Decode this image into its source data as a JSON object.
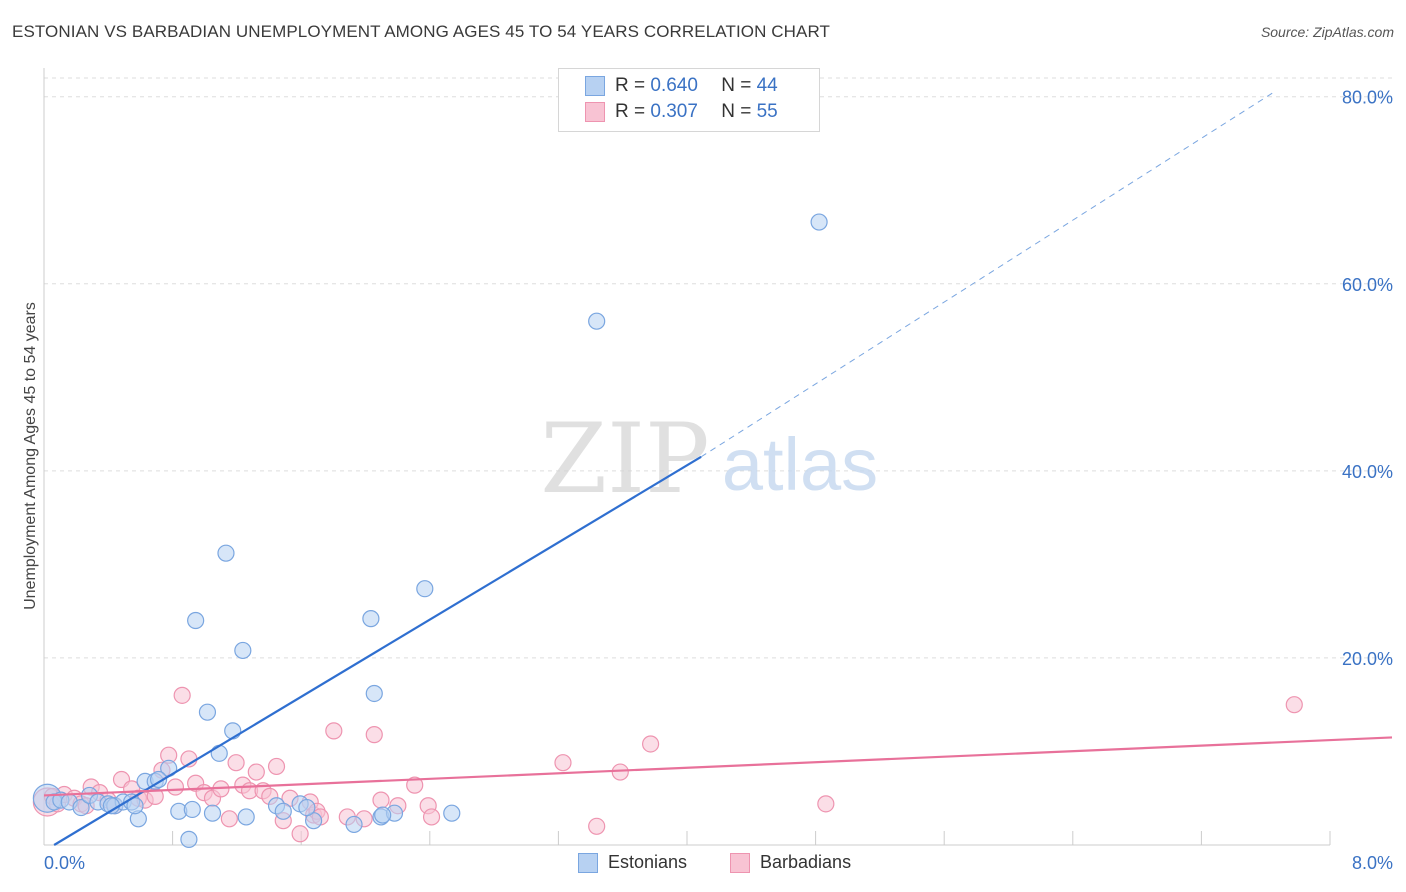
{
  "title": "ESTONIAN VS BARBADIAN UNEMPLOYMENT AMONG AGES 45 TO 54 YEARS CORRELATION CHART",
  "source": "Source: ZipAtlas.com",
  "watermark": {
    "zip": "ZIP",
    "atlas": "atlas"
  },
  "colors": {
    "blue_fill": "#b7d1f2",
    "blue_stroke": "#7aa6e0",
    "blue_line": "#2f6fd0",
    "pink_fill": "#f8c3d3",
    "pink_stroke": "#ee94b0",
    "pink_line": "#e8719a",
    "axis_text": "#3a72c4",
    "grid": "#dedede"
  },
  "legend": {
    "rows": [
      {
        "r_label": "R =",
        "r_value": "0.640",
        "n_label": "N =",
        "n_value": "44"
      },
      {
        "r_label": "R =",
        "r_value": "0.307",
        "n_label": "N =",
        "n_value": "55"
      }
    ]
  },
  "bottom_legend": {
    "estonians": "Estonians",
    "barbadians": "Barbadians"
  },
  "chart_data": {
    "type": "scatter",
    "title": "ESTONIAN VS BARBADIAN UNEMPLOYMENT AMONG AGES 45 TO 54 YEARS CORRELATION CHART",
    "xlabel": "",
    "ylabel": "Unemployment Among Ages 45 to 54 years",
    "xlim": [
      0,
      8
    ],
    "ylim": [
      0,
      82
    ],
    "x_tick_labels": [
      {
        "value": 0,
        "label": "0.0%"
      },
      {
        "value": 8,
        "label": "8.0%"
      }
    ],
    "y_ticks": [
      {
        "value": 20,
        "label": "20.0%"
      },
      {
        "value": 40,
        "label": "40.0%"
      },
      {
        "value": 60,
        "label": "60.0%"
      },
      {
        "value": 80,
        "label": "80.0%"
      }
    ],
    "series": [
      {
        "name": "Estonians",
        "color": "blue",
        "points": [
          [
            0.02,
            5.0
          ],
          [
            0.06,
            4.6
          ],
          [
            0.1,
            4.8
          ],
          [
            0.15,
            4.6
          ],
          [
            0.22,
            4.0
          ],
          [
            0.27,
            5.3
          ],
          [
            0.32,
            4.6
          ],
          [
            0.38,
            4.4
          ],
          [
            0.42,
            4.2
          ],
          [
            0.47,
            4.6
          ],
          [
            0.52,
            4.6
          ],
          [
            0.6,
            6.8
          ],
          [
            0.66,
            6.8
          ],
          [
            0.56,
            2.8
          ],
          [
            0.74,
            8.2
          ],
          [
            0.8,
            3.6
          ],
          [
            0.86,
            0.6
          ],
          [
            0.88,
            3.8
          ],
          [
            0.9,
            24.0
          ],
          [
            0.97,
            14.2
          ],
          [
            1.0,
            3.4
          ],
          [
            1.04,
            9.8
          ],
          [
            1.08,
            31.2
          ],
          [
            1.12,
            12.2
          ],
          [
            1.18,
            20.8
          ],
          [
            1.2,
            3.0
          ],
          [
            1.38,
            4.2
          ],
          [
            1.42,
            3.6
          ],
          [
            1.52,
            4.4
          ],
          [
            1.6,
            2.6
          ],
          [
            1.84,
            2.2
          ],
          [
            1.94,
            24.2
          ],
          [
            1.96,
            16.2
          ],
          [
            2.0,
            3.0
          ],
          [
            2.08,
            3.4
          ],
          [
            2.26,
            27.4
          ],
          [
            2.42,
            3.4
          ],
          [
            3.28,
            56.0
          ],
          [
            4.6,
            66.6
          ],
          [
            0.4,
            4.2
          ],
          [
            0.54,
            4.2
          ],
          [
            0.68,
            7.0
          ],
          [
            1.56,
            4.0
          ],
          [
            2.01,
            3.2
          ]
        ]
      },
      {
        "name": "Barbadians",
        "color": "pink",
        "points": [
          [
            0.02,
            4.6
          ],
          [
            0.05,
            5.2
          ],
          [
            0.08,
            4.4
          ],
          [
            0.12,
            5.4
          ],
          [
            0.18,
            5.0
          ],
          [
            0.22,
            4.4
          ],
          [
            0.28,
            6.2
          ],
          [
            0.33,
            5.6
          ],
          [
            0.38,
            4.8
          ],
          [
            0.42,
            4.2
          ],
          [
            0.46,
            7.0
          ],
          [
            0.52,
            6.0
          ],
          [
            0.56,
            5.0
          ],
          [
            0.6,
            4.8
          ],
          [
            0.66,
            5.2
          ],
          [
            0.7,
            8.0
          ],
          [
            0.74,
            9.6
          ],
          [
            0.78,
            6.2
          ],
          [
            0.82,
            16.0
          ],
          [
            0.86,
            9.2
          ],
          [
            0.9,
            6.6
          ],
          [
            0.95,
            5.6
          ],
          [
            1.0,
            5.0
          ],
          [
            1.05,
            6.0
          ],
          [
            1.1,
            2.8
          ],
          [
            1.14,
            8.8
          ],
          [
            1.18,
            6.4
          ],
          [
            1.22,
            5.8
          ],
          [
            1.26,
            7.8
          ],
          [
            1.3,
            5.8
          ],
          [
            1.34,
            5.2
          ],
          [
            1.38,
            8.4
          ],
          [
            1.42,
            2.6
          ],
          [
            1.46,
            5.0
          ],
          [
            1.52,
            1.2
          ],
          [
            1.58,
            4.6
          ],
          [
            1.6,
            3.2
          ],
          [
            1.62,
            3.6
          ],
          [
            1.64,
            3.0
          ],
          [
            1.72,
            12.2
          ],
          [
            1.8,
            3.0
          ],
          [
            1.9,
            2.8
          ],
          [
            1.96,
            11.8
          ],
          [
            2.0,
            4.8
          ],
          [
            2.1,
            4.2
          ],
          [
            2.2,
            6.4
          ],
          [
            2.28,
            4.2
          ],
          [
            2.3,
            3.0
          ],
          [
            3.08,
            8.8
          ],
          [
            3.28,
            2.0
          ],
          [
            3.42,
            7.8
          ],
          [
            3.6,
            10.8
          ],
          [
            4.64,
            4.4
          ],
          [
            7.42,
            15.0
          ],
          [
            0.25,
            4.2
          ]
        ]
      }
    ],
    "trendlines": [
      {
        "series": "Estonians",
        "solid_from": [
          0.06,
          0
        ],
        "solid_to": [
          3.9,
          41.5
        ],
        "dashed_to": [
          7.3,
          80.5
        ]
      },
      {
        "series": "Barbadians",
        "from": [
          0,
          5.3
        ],
        "to": [
          8,
          11.5
        ]
      }
    ]
  }
}
